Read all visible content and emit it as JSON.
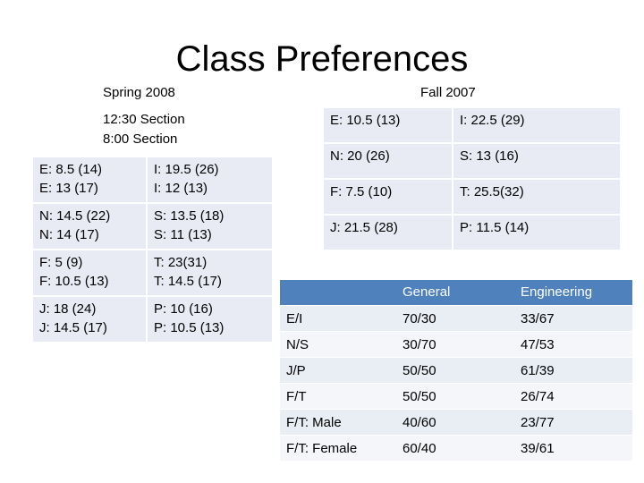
{
  "title": "Class Preferences",
  "spring": {
    "label": "Spring 2008",
    "legend": [
      "12:30 Section",
      "8:00 Section"
    ],
    "rows": [
      [
        [
          "E: 8.5 (14)",
          "E: 13 (17)"
        ],
        [
          "I: 19.5 (26)",
          "I: 12 (13)"
        ]
      ],
      [
        [
          "N: 14.5 (22)",
          "N: 14 (17)"
        ],
        [
          "S: 13.5 (18)",
          "S: 11 (13)"
        ]
      ],
      [
        [
          "F: 5 (9)",
          "F: 10.5 (13)"
        ],
        [
          "T: 23(31)",
          "T: 14.5 (17)"
        ]
      ],
      [
        [
          "J: 18 (24)",
          "J: 14.5 (17)"
        ],
        [
          "P: 10 (16)",
          "P: 10.5 (13)"
        ]
      ]
    ]
  },
  "fall": {
    "label": "Fall 2007",
    "rows": [
      [
        "E: 10.5 (13)",
        "I: 22.5 (29)"
      ],
      [
        "N: 20 (26)",
        "S: 13 (16)"
      ],
      [
        "F: 7.5 (10)",
        "T: 25.5(32)"
      ],
      [
        "J: 21.5 (28)",
        "P: 11.5 (14)"
      ]
    ]
  },
  "comparison": {
    "header": [
      "General",
      "Engineering"
    ],
    "rows": [
      [
        "E/I",
        "70/30",
        "33/67"
      ],
      [
        "N/S",
        "30/70",
        "47/53"
      ],
      [
        "J/P",
        "50/50",
        "61/39"
      ],
      [
        "F/T",
        "50/50",
        "26/74"
      ],
      [
        "F/T: Male",
        "40/60",
        "23/77"
      ],
      [
        "F/T: Female",
        "60/40",
        "39/61"
      ]
    ]
  }
}
